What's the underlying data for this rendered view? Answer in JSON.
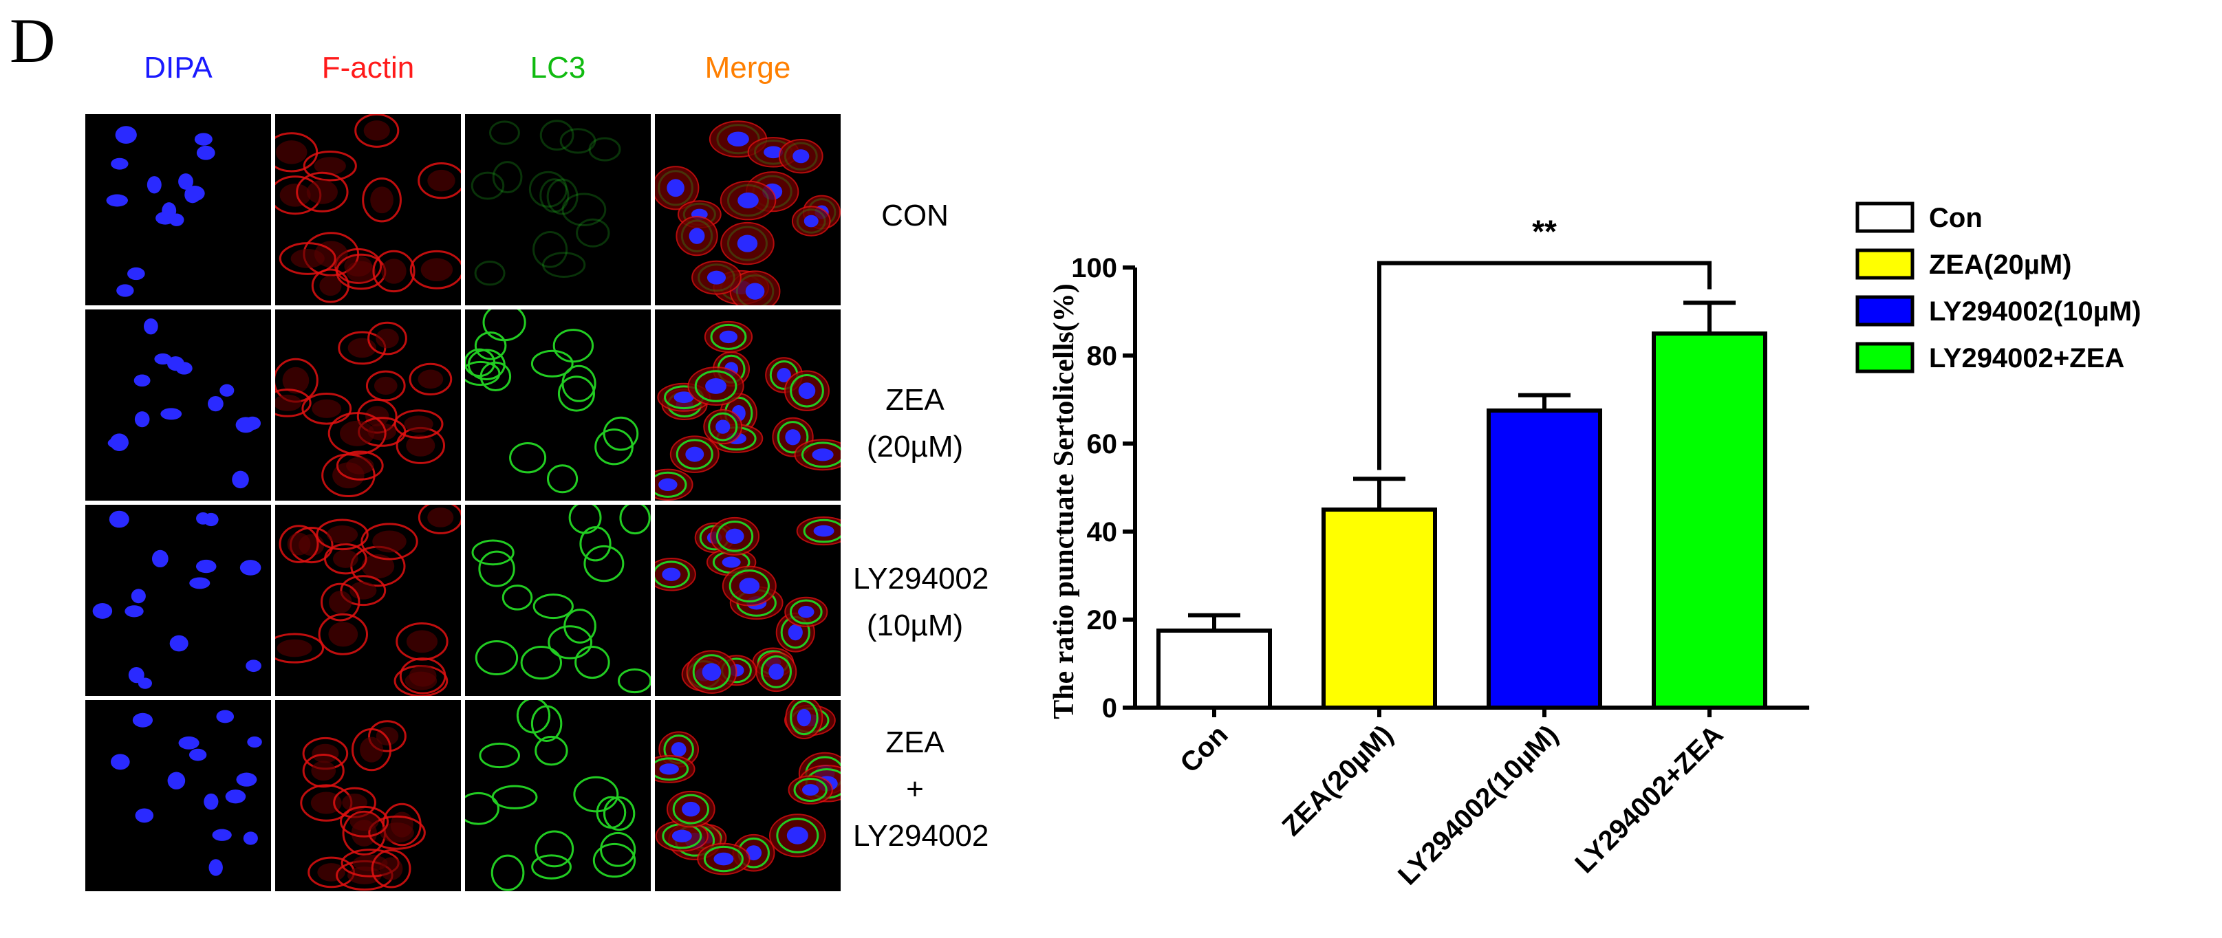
{
  "panel": {
    "letter": "D"
  },
  "columns": [
    {
      "label": "DIPA",
      "color": "#1a1aff"
    },
    {
      "label": "F-actin",
      "color": "#ff1a1a"
    },
    {
      "label": "LC3",
      "color": "#11bb11"
    },
    {
      "label": "Merge",
      "color": "#ff7f00"
    }
  ],
  "rows": [
    {
      "lines": [
        "CON"
      ]
    },
    {
      "lines": [
        "ZEA",
        "(20µM)"
      ]
    },
    {
      "lines": [
        "LY294002",
        "(10µM)"
      ]
    },
    {
      "lines": [
        "ZEA",
        "+",
        "LY294002"
      ]
    }
  ],
  "chart_data": {
    "type": "bar",
    "categories": [
      "Con",
      "ZEA(20µM)",
      "LY294002(10µM)",
      "LY294002+ZEA"
    ],
    "values": [
      17.5,
      45,
      67.5,
      85
    ],
    "errors": [
      3.5,
      7,
      3.5,
      7
    ],
    "colors": [
      "#ffffff",
      "#ffff00",
      "#0000ff",
      "#00ff00"
    ],
    "title": "",
    "xlabel": "",
    "ylabel": "The ratio punctuate Sertolicells(%)",
    "ylim": [
      0,
      100
    ],
    "yticks": [
      0,
      20,
      40,
      60,
      80,
      100
    ],
    "grid": false,
    "legend": {
      "position": "top-right",
      "entries": [
        "Con",
        "ZEA(20µM)",
        "LY294002(10µM)",
        "LY294002+ZEA"
      ]
    },
    "annotations": [
      {
        "text": "**",
        "from": "ZEA(20µM)",
        "to": "LY294002+ZEA"
      }
    ]
  }
}
